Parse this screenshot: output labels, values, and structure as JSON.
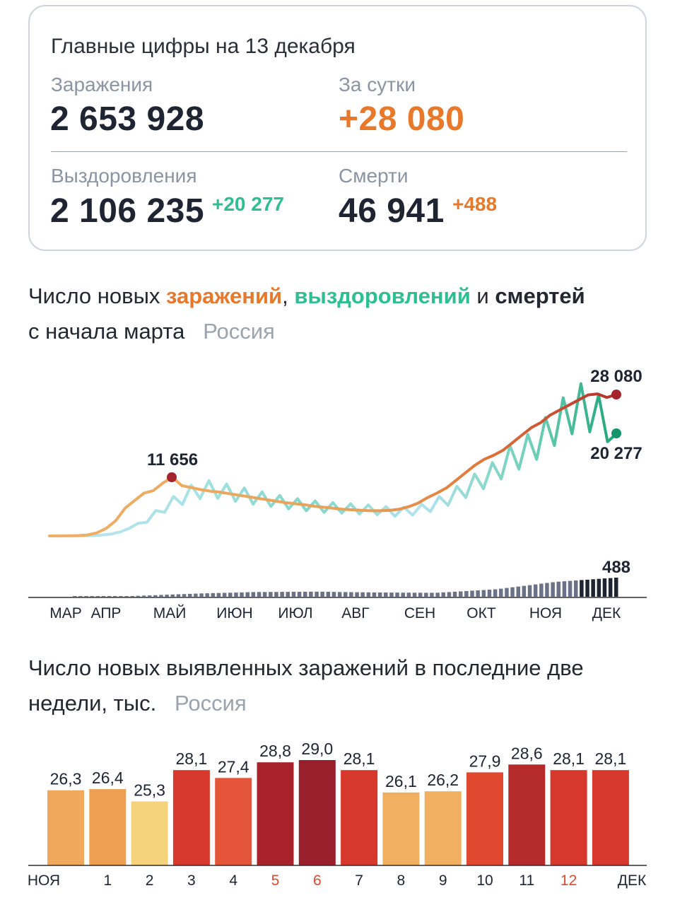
{
  "summary": {
    "title": "Главные цифры на 13 декабря",
    "infections_label": "Заражения",
    "infections_value": "2 653 928",
    "day_label": "За сутки",
    "day_value": "+28 080",
    "recoveries_label": "Выздоровления",
    "recoveries_value": "2 106 235",
    "recoveries_delta": "+20 277",
    "deaths_label": "Смерти",
    "deaths_value": "46 941",
    "deaths_delta": "+488"
  },
  "chart1_heading": {
    "part1": "Число новых ",
    "infections": "заражений",
    "comma": ", ",
    "recoveries": "выздоровлений",
    "and": " и ",
    "deaths": "смертей",
    "line2": "с начала марта",
    "region": "Россия"
  },
  "chart2_heading": {
    "line1": "Число новых выявленных заражений в последние две",
    "line2": "недели, тыс.",
    "region": "Россия"
  },
  "colors": {
    "orange": "#e8782a",
    "green": "#2dbf92",
    "dark": "#1f2433",
    "grey": "#8a94a3"
  },
  "chart_data": [
    {
      "type": "line",
      "x_ticks": [
        "МАР",
        "АПР",
        "МАЙ",
        "ИЮН",
        "ИЮЛ",
        "АВГ",
        "СЕН",
        "ОКТ",
        "НОЯ",
        "ДЕК"
      ],
      "annotations": [
        "11 656",
        "28 080",
        "20 277",
        "488"
      ],
      "series": [
        {
          "values_note": "new infections, weekly points Mar–Dec",
          "values": [
            0,
            5,
            30,
            70,
            200,
            600,
            1500,
            3000,
            5500,
            7000,
            8500,
            9000,
            10500,
            11656,
            10000,
            9600,
            9200,
            8900,
            8700,
            8400,
            8100,
            7800,
            7500,
            7200,
            6900,
            6600,
            6400,
            6200,
            5900,
            5700,
            5500,
            5300,
            5200,
            5100,
            5000,
            5000,
            5100,
            5300,
            5800,
            6500,
            7600,
            8500,
            9500,
            11000,
            12500,
            14000,
            15200,
            16000,
            17000,
            18500,
            20000,
            21500,
            22500,
            24000,
            25000,
            26000,
            27000,
            28000,
            28200,
            27500,
            28080
          ]
        },
        {
          "values_note": "new recoveries, weekly points Mar–Dec",
          "values": [
            0,
            0,
            0,
            0,
            20,
            50,
            200,
            400,
            800,
            1500,
            2500,
            3500,
            4500,
            6000,
            7000,
            8000,
            9000,
            9500,
            9800,
            9600,
            9200,
            8800,
            8500,
            8100,
            7800,
            7500,
            7200,
            6900,
            6600,
            6400,
            6200,
            6000,
            5900,
            5800,
            5700,
            5600,
            5500,
            5400,
            5200,
            5000,
            5100,
            5300,
            5600,
            6200,
            7000,
            7800,
            8800,
            9800,
            11000,
            12000,
            13000,
            14500,
            16000,
            17000,
            18000,
            19500,
            21000,
            23000,
            24500,
            26000,
            27000,
            26500,
            25000,
            24000,
            20277
          ]
        },
        {
          "values_note": "daily deaths, monthly reference",
          "months": [
            "МАР",
            "АПР",
            "МАЙ",
            "ИЮН",
            "ИЮЛ",
            "АВГ",
            "СЕН",
            "ОКТ",
            "НОЯ",
            "ДЕК"
          ],
          "values": [
            1,
            20,
            80,
            120,
            130,
            110,
            100,
            190,
            380,
            488
          ]
        }
      ]
    },
    {
      "type": "bar",
      "categories": [
        "НОЯ",
        "1",
        "2",
        "3",
        "4",
        "5",
        "6",
        "7",
        "8",
        "9",
        "10",
        "11",
        "12",
        ""
      ],
      "x_extra_label": "ДЕК",
      "red_labels": [
        "5",
        "6",
        "12"
      ],
      "values": [
        26.3,
        26.4,
        25.3,
        28.1,
        27.4,
        28.8,
        29.0,
        28.1,
        26.1,
        26.2,
        27.9,
        28.6,
        28.1,
        28.1
      ],
      "value_labels": [
        "26,3",
        "26,4",
        "25,3",
        "28,1",
        "27,4",
        "28,8",
        "29,0",
        "28,1",
        "26,1",
        "26,2",
        "27,9",
        "28,6",
        "28,1",
        "28,1"
      ],
      "ylim": [
        0,
        29.0
      ]
    }
  ]
}
